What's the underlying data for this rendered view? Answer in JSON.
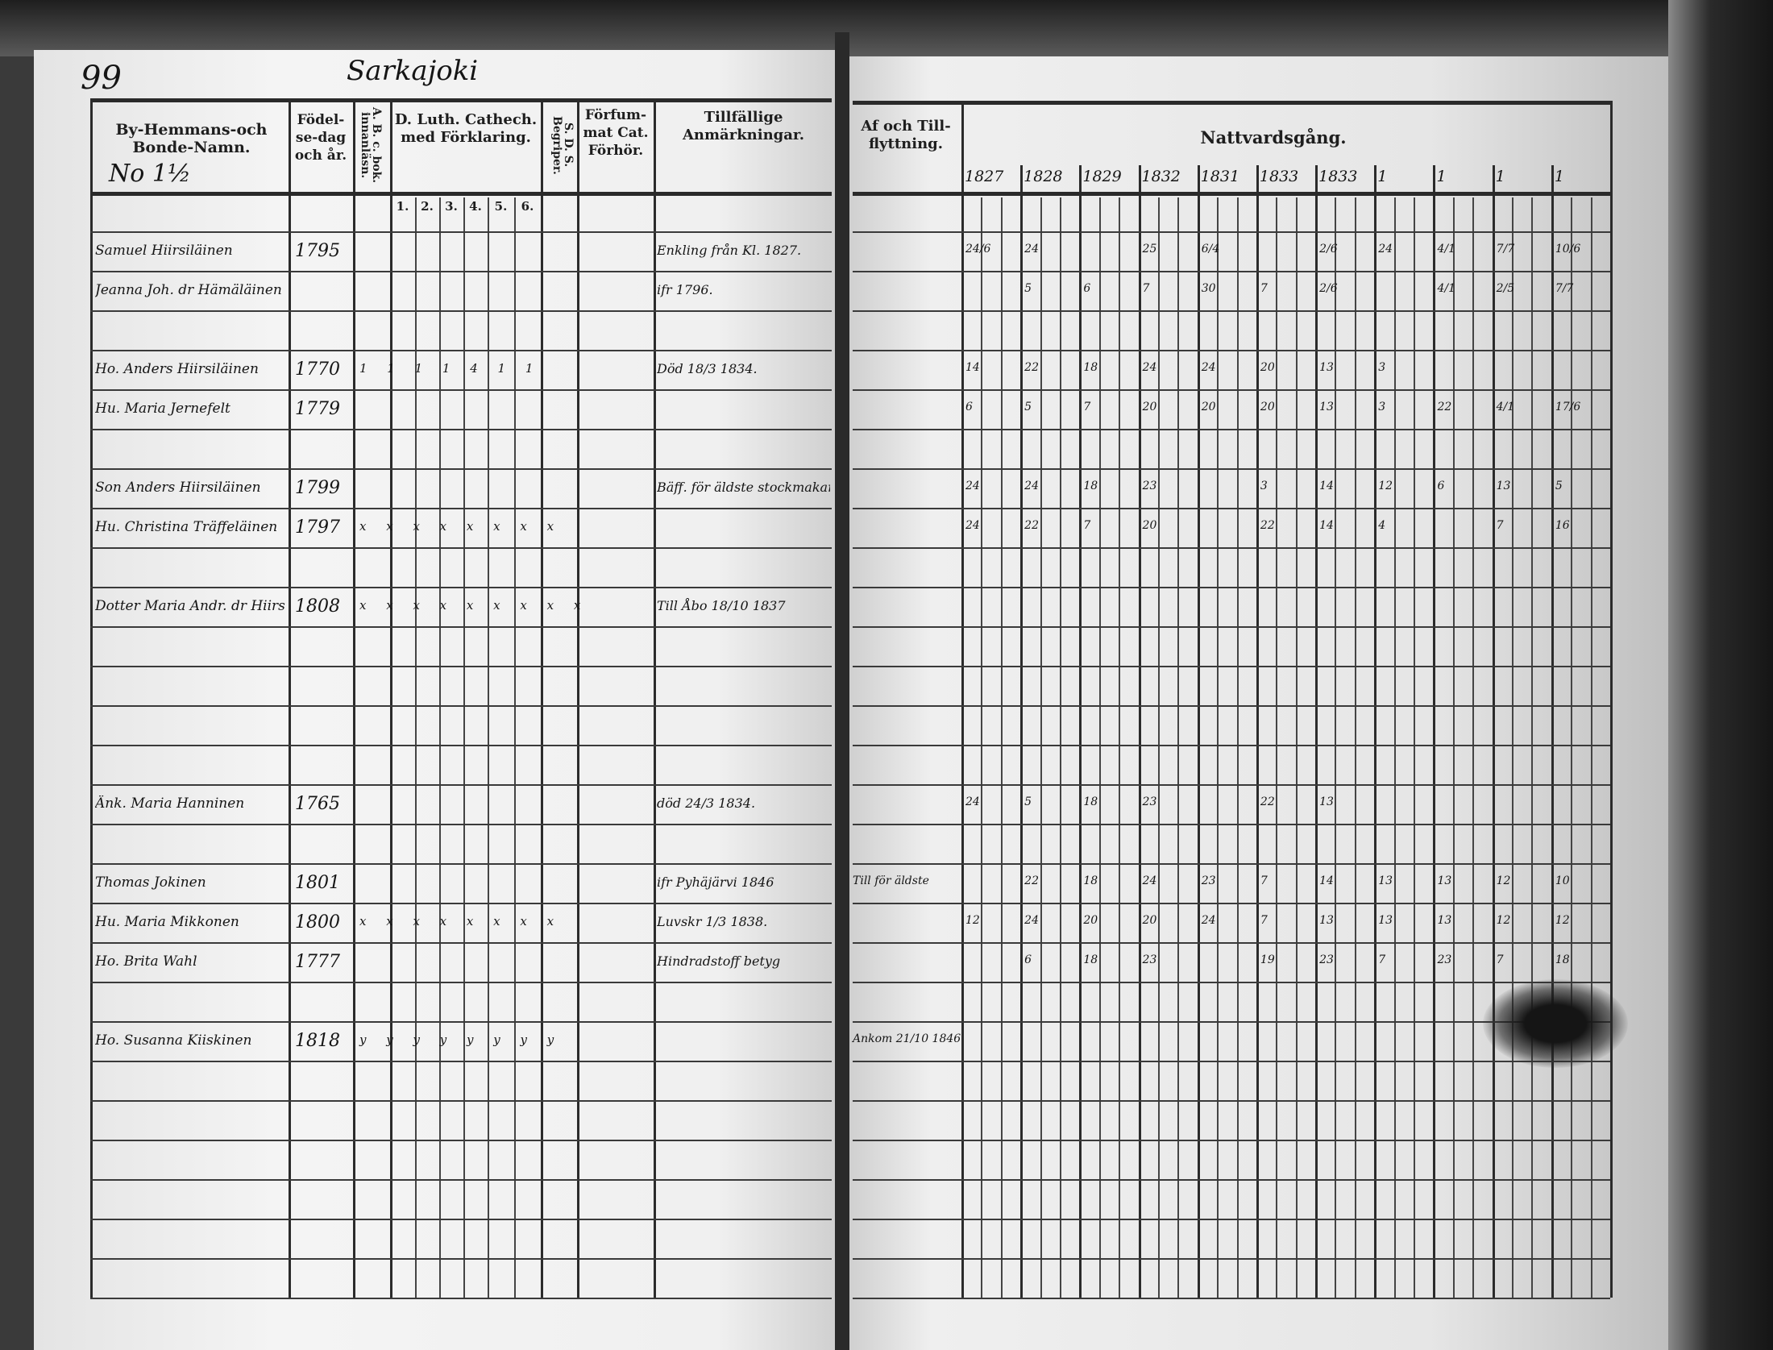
{
  "page_number": "99",
  "village": "Sarkajoki",
  "household_number": "No 1½",
  "left_headers": {
    "name": "By-Hemmans-och Bonde-Namn.",
    "birth": "Födel-se-dag och år.",
    "abc": "A. B. c. bok. innanläsn.",
    "catechism": "D. Luth. Cathech. med Förklaring.",
    "catechism_subcols": [
      "1.",
      "2.",
      "3.",
      "4.",
      "5.",
      "6."
    ],
    "sds": "S. D. S. Begriper.",
    "forfum": "Förfum-mat Cat. Förhör.",
    "remarks": "Tillfällige Anmärkningar."
  },
  "right_headers": {
    "moving": "Af och Till-flyttning.",
    "communion": "Nattvardsgång.",
    "years": [
      "1827",
      "1828",
      "1829",
      "1832",
      "1831",
      "1833",
      "1833",
      "1",
      "1",
      "1",
      "1"
    ]
  },
  "entries": [
    {
      "row": 1,
      "name": "Samuel Hiirsiläinen",
      "birth": "1795",
      "marks": "",
      "remark": "Enkling från Kl. 1827.",
      "moving": "",
      "communion": [
        "24/6",
        "24",
        "",
        "25",
        "6/4",
        "",
        "2/6",
        "24",
        "4/1",
        "7/7",
        "10/6"
      ]
    },
    {
      "row": 2,
      "name": "Jeanna Joh. dr Hämäläinen",
      "birth": "",
      "marks": "",
      "remark": "ifr 1796.",
      "moving": "",
      "communion": [
        "",
        "5",
        "6",
        "7",
        "30",
        "7",
        "2/6",
        "",
        "4/1",
        "2/5",
        "7/7"
      ]
    },
    {
      "row": 4,
      "name": "Ho. Anders Hiirsiläinen",
      "birth": "1770",
      "marks": "1 1 1 1 4 1 1",
      "remark": "Död 18/3 1834.",
      "moving": "",
      "communion": [
        "14",
        "22",
        "18",
        "24",
        "24",
        "20",
        "13",
        "3",
        "",
        "",
        ""
      ]
    },
    {
      "row": 5,
      "name": "Hu. Maria Jernefelt",
      "birth": "1779",
      "marks": "",
      "remark": "",
      "moving": "",
      "communion": [
        "6",
        "5",
        "7",
        "20",
        "20",
        "20",
        "13",
        "3",
        "22",
        "4/1",
        "17/6"
      ]
    },
    {
      "row": 7,
      "name": "Son Anders Hiirsiläinen",
      "birth": "1799",
      "marks": "",
      "remark": "Bäff. för äldste stockmakare",
      "moving": "",
      "communion": [
        "24",
        "24",
        "18",
        "23",
        "",
        "3",
        "14",
        "12",
        "6",
        "13",
        "5"
      ]
    },
    {
      "row": 8,
      "name": "Hu. Christina Träffeläinen",
      "birth": "1797",
      "marks": "x x x x x x x x",
      "remark": "",
      "moving": "",
      "communion": [
        "24",
        "22",
        "7",
        "20",
        "",
        "22",
        "14",
        "4",
        "",
        "7",
        "16"
      ]
    },
    {
      "row": 10,
      "name": "Dotter Maria Andr. dr Hiirsiläinen",
      "birth": "1808",
      "marks": "x x x x x x x x x",
      "remark": "Till Åbo 18/10 1837",
      "moving": "",
      "communion": []
    },
    {
      "row": 15,
      "name": "Änk. Maria Hanninen",
      "birth": "1765",
      "marks": "",
      "remark": "död 24/3 1834.",
      "moving": "",
      "communion": [
        "24",
        "5",
        "18",
        "23",
        "",
        "22",
        "13",
        "",
        "",
        "",
        ""
      ]
    },
    {
      "row": 17,
      "name": "Thomas Jokinen",
      "birth": "1801",
      "marks": "",
      "remark": "ifr Pyhäjärvi 1846",
      "moving": "Till för äldste",
      "communion": [
        "",
        "22",
        "18",
        "24",
        "23",
        "7",
        "14",
        "13",
        "13",
        "12",
        "10"
      ]
    },
    {
      "row": 18,
      "name": "Hu. Maria Mikkonen",
      "birth": "1800",
      "marks": "x x x x x x x x",
      "remark": "Luvskr 1/3 1838.",
      "moving": "",
      "communion": [
        "12",
        "24",
        "20",
        "20",
        "24",
        "7",
        "13",
        "13",
        "13",
        "12",
        "12"
      ]
    },
    {
      "row": 19,
      "name": "Ho. Brita Wahl",
      "birth": "1777",
      "marks": "",
      "remark": "Hindradstoff betyg",
      "moving": "",
      "communion": [
        "",
        "6",
        "18",
        "23",
        "",
        "19",
        "23",
        "7",
        "23",
        "7",
        "18"
      ]
    },
    {
      "row": 21,
      "name": "Ho. Susanna Kiiskinen",
      "birth": "1818",
      "marks": "y y y y y y y y",
      "remark": "",
      "moving": "Ankom 21/10 1846",
      "communion": []
    }
  ]
}
